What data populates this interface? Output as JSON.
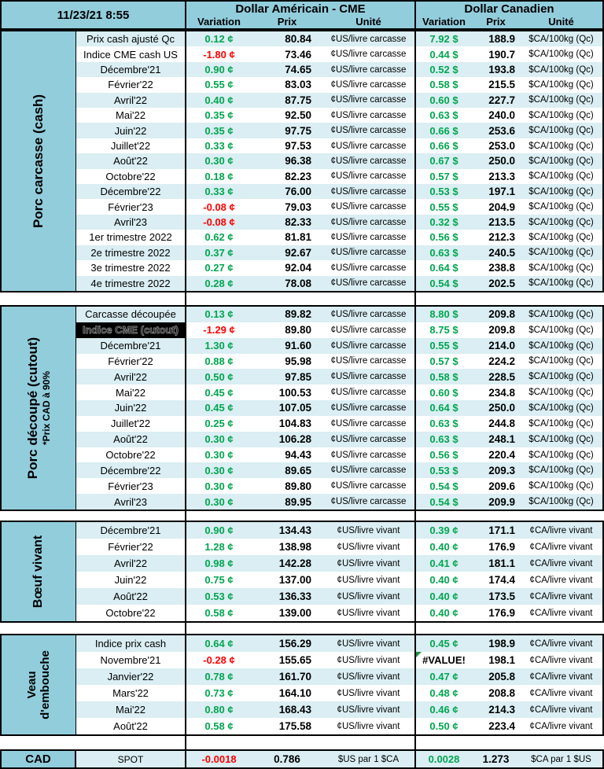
{
  "header": {
    "timestamp": "11/23/21 8:55",
    "usd_title": "Dollar Américain - CME",
    "cad_title": "Dollar Canadien",
    "columns": {
      "variation": "Variation",
      "prix": "Prix",
      "unite": "Unité"
    }
  },
  "colors": {
    "positive": "#00A64F",
    "negative": "#FF0000",
    "header_blue": "#92CDDC",
    "stripe_blue": "#DAEEF3",
    "error_indicator": "#1F9246"
  },
  "sections": [
    {
      "name": "porc-carcasse-cash",
      "label": "Porc carcasse (cash)",
      "sublabel": "",
      "usd_unit": "¢US/livre carcasse",
      "cad_unit": "$CA/100kg (Qc)",
      "rows": [
        {
          "label": "Prix cash ajusté Qc",
          "usd_var": "0.12 ¢",
          "usd_prix": "80.84",
          "cad_var": "7.92 $",
          "cad_prix": "188.9"
        },
        {
          "label": "Indice CME cash US",
          "usd_var": "-1.80 ¢",
          "usd_prix": "73.46",
          "cad_var": "0.44 $",
          "cad_prix": "190.7"
        },
        {
          "label": "Décembre'21",
          "usd_var": "0.90 ¢",
          "usd_prix": "74.65",
          "cad_var": "0.52 $",
          "cad_prix": "193.8"
        },
        {
          "label": "Février'22",
          "usd_var": "0.55 ¢",
          "usd_prix": "83.03",
          "cad_var": "0.58 $",
          "cad_prix": "215.5"
        },
        {
          "label": "Avril'22",
          "usd_var": "0.40 ¢",
          "usd_prix": "87.75",
          "cad_var": "0.60 $",
          "cad_prix": "227.7"
        },
        {
          "label": "Mai'22",
          "usd_var": "0.35 ¢",
          "usd_prix": "92.50",
          "cad_var": "0.63 $",
          "cad_prix": "240.0"
        },
        {
          "label": "Juin'22",
          "usd_var": "0.35 ¢",
          "usd_prix": "97.75",
          "cad_var": "0.66 $",
          "cad_prix": "253.6"
        },
        {
          "label": "Juillet'22",
          "usd_var": "0.33 ¢",
          "usd_prix": "97.53",
          "cad_var": "0.66 $",
          "cad_prix": "253.0"
        },
        {
          "label": "Août'22",
          "usd_var": "0.30 ¢",
          "usd_prix": "96.38",
          "cad_var": "0.67 $",
          "cad_prix": "250.0"
        },
        {
          "label": "Octobre'22",
          "usd_var": "0.18 ¢",
          "usd_prix": "82.23",
          "cad_var": "0.57 $",
          "cad_prix": "213.3"
        },
        {
          "label": "Décembre'22",
          "usd_var": "0.33 ¢",
          "usd_prix": "76.00",
          "cad_var": "0.53 $",
          "cad_prix": "197.1"
        },
        {
          "label": "Février'23",
          "usd_var": "-0.08 ¢",
          "usd_prix": "79.03",
          "cad_var": "0.55 $",
          "cad_prix": "204.9"
        },
        {
          "label": "Avril'23",
          "usd_var": "-0.08 ¢",
          "usd_prix": "82.33",
          "cad_var": "0.32 $",
          "cad_prix": "213.5"
        },
        {
          "label": "1er trimestre 2022",
          "usd_var": "0.62 ¢",
          "usd_prix": "81.81",
          "cad_var": "0.56 $",
          "cad_prix": "212.3"
        },
        {
          "label": "2e trimestre 2022",
          "usd_var": "0.37 ¢",
          "usd_prix": "92.67",
          "cad_var": "0.63 $",
          "cad_prix": "240.5"
        },
        {
          "label": "3e trimestre 2022",
          "usd_var": "0.27 ¢",
          "usd_prix": "92.04",
          "cad_var": "0.64 $",
          "cad_prix": "238.8"
        },
        {
          "label": "4e trimestre 2022",
          "usd_var": "0.28 ¢",
          "usd_prix": "78.08",
          "cad_var": "0.54 $",
          "cad_prix": "202.5"
        }
      ]
    },
    {
      "name": "porc-decoupe-cutout",
      "label": "Porc découpé (cutout)",
      "sublabel": "*Prix CAD à 90%",
      "usd_unit": "¢US/livre carcasse",
      "cad_unit": "$CA/100kg (Qc)",
      "rows": [
        {
          "label": "Carcasse découpée",
          "usd_var": "0.13 ¢",
          "usd_prix": "89.82",
          "cad_var": "8.80 $",
          "cad_prix": "209.8"
        },
        {
          "label": "Indice CME (cutout)",
          "label_inverted": true,
          "usd_var": "-1.29 ¢",
          "usd_prix": "89.80",
          "cad_var": "8.75 $",
          "cad_prix": "209.8"
        },
        {
          "label": "Décembre'21",
          "usd_var": "1.30 ¢",
          "usd_prix": "91.60",
          "cad_var": "0.55 $",
          "cad_prix": "214.0"
        },
        {
          "label": "Février'22",
          "usd_var": "0.88 ¢",
          "usd_prix": "95.98",
          "cad_var": "0.57 $",
          "cad_prix": "224.2"
        },
        {
          "label": "Avril'22",
          "usd_var": "0.50 ¢",
          "usd_prix": "97.85",
          "cad_var": "0.58 $",
          "cad_prix": "228.5"
        },
        {
          "label": "Mai'22",
          "usd_var": "0.45 ¢",
          "usd_prix": "100.53",
          "cad_var": "0.60 $",
          "cad_prix": "234.8"
        },
        {
          "label": "Juin'22",
          "usd_var": "0.45 ¢",
          "usd_prix": "107.05",
          "cad_var": "0.64 $",
          "cad_prix": "250.0"
        },
        {
          "label": "Juillet'22",
          "usd_var": "0.25 ¢",
          "usd_prix": "104.83",
          "cad_var": "0.63 $",
          "cad_prix": "244.8"
        },
        {
          "label": "Août'22",
          "usd_var": "0.30 ¢",
          "usd_prix": "106.28",
          "cad_var": "0.63 $",
          "cad_prix": "248.1"
        },
        {
          "label": "Octobre'22",
          "usd_var": "0.30 ¢",
          "usd_prix": "94.43",
          "cad_var": "0.56 $",
          "cad_prix": "220.4"
        },
        {
          "label": "Décembre'22",
          "usd_var": "0.30 ¢",
          "usd_prix": "89.65",
          "cad_var": "0.53 $",
          "cad_prix": "209.3"
        },
        {
          "label": "Février'23",
          "usd_var": "0.30 ¢",
          "usd_prix": "89.80",
          "cad_var": "0.54 $",
          "cad_prix": "209.6"
        },
        {
          "label": "Avril'23",
          "usd_var": "0.30 ¢",
          "usd_prix": "89.95",
          "cad_var": "0.54 $",
          "cad_prix": "209.9"
        }
      ]
    },
    {
      "name": "boeuf-vivant",
      "label": "Bœuf vivant",
      "sublabel": "",
      "usd_unit": "¢US/livre vivant",
      "cad_unit": "¢CA/livre vivant",
      "rows": [
        {
          "label": "Décembre'21",
          "usd_var": "0.90 ¢",
          "usd_prix": "134.43",
          "cad_var": "0.39 ¢",
          "cad_prix": "171.1"
        },
        {
          "label": "Février'22",
          "usd_var": "1.28 ¢",
          "usd_prix": "138.98",
          "cad_var": "0.40 ¢",
          "cad_prix": "176.9"
        },
        {
          "label": "Avril'22",
          "usd_var": "0.98 ¢",
          "usd_prix": "142.28",
          "cad_var": "0.41 ¢",
          "cad_prix": "181.1"
        },
        {
          "label": "Juin'22",
          "usd_var": "0.75 ¢",
          "usd_prix": "137.00",
          "cad_var": "0.40 ¢",
          "cad_prix": "174.4"
        },
        {
          "label": "Août'22",
          "usd_var": "0.53 ¢",
          "usd_prix": "136.33",
          "cad_var": "0.40 ¢",
          "cad_prix": "173.5"
        },
        {
          "label": "Octobre'22",
          "usd_var": "0.58 ¢",
          "usd_prix": "139.00",
          "cad_var": "0.40 ¢",
          "cad_prix": "176.9"
        }
      ]
    },
    {
      "name": "veau-embouche",
      "label": "Veau d'embouche",
      "sublabel": "",
      "usd_unit": "¢US/livre vivant",
      "cad_unit": "¢CA/livre vivant",
      "rows": [
        {
          "label": "Indice prix cash",
          "usd_var": "0.64 ¢",
          "usd_prix": "156.29",
          "cad_var": "0.45 ¢",
          "cad_prix": "198.9"
        },
        {
          "label": "Novembre'21",
          "usd_var": "-0.28 ¢",
          "usd_prix": "155.65",
          "cad_var": "#VALUE!",
          "cad_prix": "198.1"
        },
        {
          "label": "Janvier'22",
          "usd_var": "0.78 ¢",
          "usd_prix": "161.70",
          "cad_var": "0.47 ¢",
          "cad_prix": "205.8"
        },
        {
          "label": "Mars'22",
          "usd_var": "0.73 ¢",
          "usd_prix": "164.10",
          "cad_var": "0.48 ¢",
          "cad_prix": "208.8"
        },
        {
          "label": "Mai'22",
          "usd_var": "0.80 ¢",
          "usd_prix": "168.43",
          "cad_var": "0.46 ¢",
          "cad_prix": "214.3"
        },
        {
          "label": "Août'22",
          "usd_var": "0.58 ¢",
          "usd_prix": "175.58",
          "cad_var": "0.50 ¢",
          "cad_prix": "223.4"
        }
      ]
    }
  ],
  "spot": {
    "group": "CAD",
    "label": "SPOT",
    "usd_var": "-0.0018",
    "usd_prix": "0.786",
    "usd_unit": "$US par 1 $CA",
    "cad_var": "0.0028",
    "cad_prix": "1.273",
    "cad_unit": "$CA par 1 $US"
  }
}
